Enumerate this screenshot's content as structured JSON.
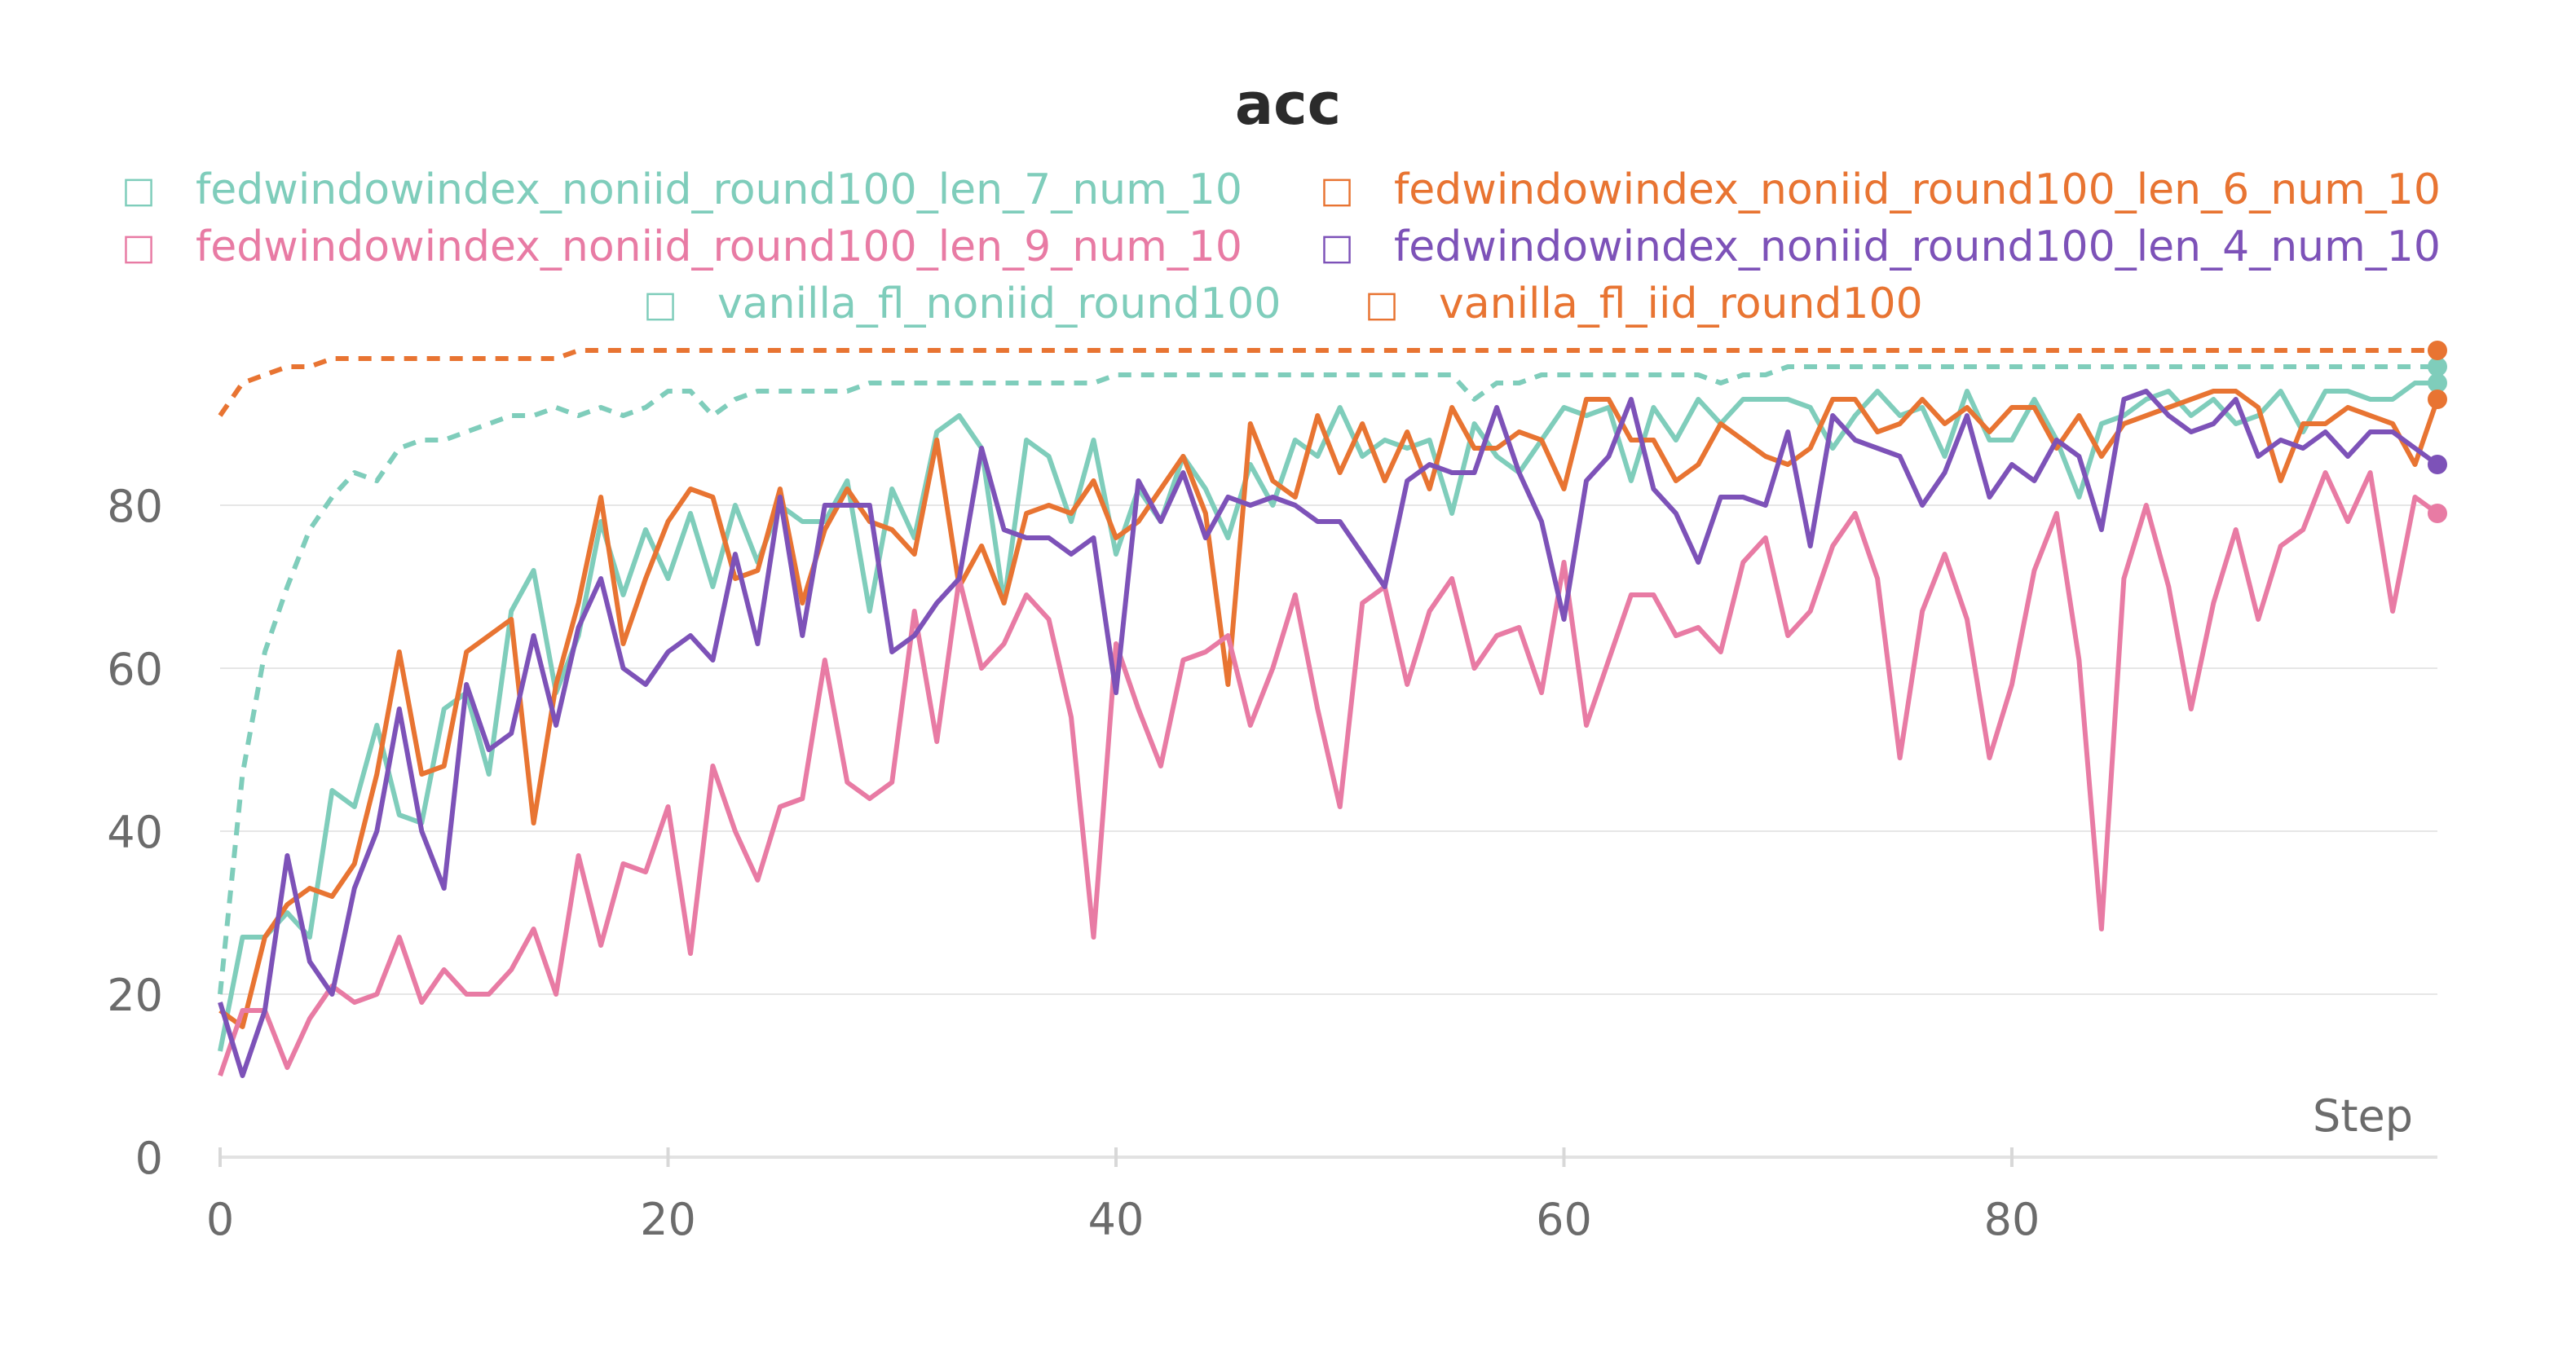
{
  "chart_data": {
    "type": "line",
    "title": "acc",
    "xlabel": "Step",
    "ylabel": "",
    "xlim": [
      0,
      99
    ],
    "ylim": [
      0,
      100
    ],
    "x_ticks": [
      0,
      20,
      40,
      60,
      80
    ],
    "y_ticks": [
      0,
      20,
      40,
      60,
      80
    ],
    "grid": "horizontal",
    "legend_position": "top",
    "legend_icon": "□",
    "series": [
      {
        "name": "fedwindowindex_noniid_round100_len_7_num_10",
        "color": "#7fcdbb",
        "dashed": false,
        "x": [
          0,
          1,
          2,
          3,
          4,
          5,
          6,
          7,
          8,
          9,
          10,
          11,
          12,
          13,
          14,
          15,
          16,
          17,
          18,
          19,
          20,
          21,
          22,
          23,
          24,
          25,
          26,
          27,
          28,
          29,
          30,
          31,
          32,
          33,
          34,
          35,
          36,
          37,
          38,
          39,
          40,
          41,
          42,
          43,
          44,
          45,
          46,
          47,
          48,
          49,
          50,
          51,
          52,
          53,
          54,
          55,
          56,
          57,
          58,
          59,
          60,
          61,
          62,
          63,
          64,
          65,
          66,
          67,
          68,
          69,
          70,
          71,
          72,
          73,
          74,
          75,
          76,
          77,
          78,
          79,
          80,
          81,
          82,
          83,
          84,
          85,
          86,
          87,
          88,
          89,
          90,
          91,
          92,
          93,
          94,
          95,
          96,
          97,
          98,
          99
        ],
        "values": [
          13,
          27,
          27,
          30,
          27,
          45,
          43,
          53,
          42,
          41,
          55,
          57,
          47,
          67,
          72,
          57,
          64,
          78,
          69,
          77,
          71,
          79,
          70,
          80,
          73,
          80,
          78,
          78,
          83,
          67,
          82,
          76,
          89,
          91,
          87,
          68,
          88,
          86,
          78,
          88,
          74,
          82,
          78,
          86,
          82,
          76,
          85,
          80,
          88,
          86,
          92,
          86,
          88,
          87,
          88,
          79,
          90,
          86,
          84,
          88,
          92,
          91,
          92,
          83,
          92,
          88,
          93,
          90,
          93,
          93,
          93,
          92,
          87,
          91,
          94,
          91,
          92,
          86,
          94,
          88,
          88,
          93,
          88,
          81,
          90,
          91,
          93,
          94,
          91,
          93,
          90,
          91,
          94,
          89,
          94,
          94,
          93,
          93,
          95,
          95
        ]
      },
      {
        "name": "fedwindowindex_noniid_round100_len_6_num_10",
        "color": "#e87432",
        "dashed": false,
        "x": [
          0,
          1,
          2,
          3,
          4,
          5,
          6,
          7,
          8,
          9,
          10,
          11,
          12,
          13,
          14,
          15,
          16,
          17,
          18,
          19,
          20,
          21,
          22,
          23,
          24,
          25,
          26,
          27,
          28,
          29,
          30,
          31,
          32,
          33,
          34,
          35,
          36,
          37,
          38,
          39,
          40,
          41,
          42,
          43,
          44,
          45,
          46,
          47,
          48,
          49,
          50,
          51,
          52,
          53,
          54,
          55,
          56,
          57,
          58,
          59,
          60,
          61,
          62,
          63,
          64,
          65,
          66,
          67,
          68,
          69,
          70,
          71,
          72,
          73,
          74,
          75,
          76,
          77,
          78,
          79,
          80,
          81,
          82,
          83,
          84,
          85,
          86,
          87,
          88,
          89,
          90,
          91,
          92,
          93,
          94,
          95,
          96,
          97,
          98,
          99
        ],
        "values": [
          18,
          16,
          27,
          31,
          33,
          32,
          36,
          47,
          62,
          47,
          48,
          62,
          64,
          66,
          41,
          58,
          68,
          81,
          63,
          71,
          78,
          82,
          81,
          71,
          72,
          82,
          68,
          77,
          82,
          78,
          77,
          74,
          88,
          70,
          75,
          68,
          79,
          80,
          79,
          83,
          76,
          78,
          82,
          86,
          79,
          58,
          90,
          83,
          81,
          91,
          84,
          90,
          83,
          89,
          82,
          92,
          87,
          87,
          89,
          88,
          82,
          93,
          93,
          88,
          88,
          83,
          85,
          90,
          88,
          86,
          85,
          87,
          93,
          93,
          89,
          90,
          93,
          90,
          92,
          89,
          92,
          92,
          87,
          91,
          86,
          90,
          91,
          92,
          93,
          94,
          94,
          92,
          83,
          90,
          90,
          92,
          91,
          90,
          85,
          93
        ]
      },
      {
        "name": "fedwindowindex_noniid_round100_len_9_num_10",
        "color": "#e87ba4",
        "dashed": false,
        "x": [
          0,
          1,
          2,
          3,
          4,
          5,
          6,
          7,
          8,
          9,
          10,
          11,
          12,
          13,
          14,
          15,
          16,
          17,
          18,
          19,
          20,
          21,
          22,
          23,
          24,
          25,
          26,
          27,
          28,
          29,
          30,
          31,
          32,
          33,
          34,
          35,
          36,
          37,
          38,
          39,
          40,
          41,
          42,
          43,
          44,
          45,
          46,
          47,
          48,
          49,
          50,
          51,
          52,
          53,
          54,
          55,
          56,
          57,
          58,
          59,
          60,
          61,
          62,
          63,
          64,
          65,
          66,
          67,
          68,
          69,
          70,
          71,
          72,
          73,
          74,
          75,
          76,
          77,
          78,
          79,
          80,
          81,
          82,
          83,
          84,
          85,
          86,
          87,
          88,
          89,
          90,
          91,
          92,
          93,
          94,
          95,
          96,
          97,
          98,
          99
        ],
        "values": [
          10,
          18,
          18,
          11,
          17,
          21,
          19,
          20,
          27,
          19,
          23,
          20,
          20,
          23,
          28,
          20,
          37,
          26,
          36,
          35,
          43,
          25,
          48,
          40,
          34,
          43,
          44,
          61,
          46,
          44,
          46,
          67,
          51,
          71,
          60,
          63,
          69,
          66,
          54,
          27,
          63,
          55,
          48,
          61,
          62,
          64,
          53,
          60,
          69,
          55,
          43,
          68,
          70,
          58,
          67,
          71,
          60,
          64,
          65,
          57,
          73,
          53,
          61,
          69,
          69,
          64,
          65,
          62,
          73,
          76,
          64,
          67,
          75,
          79,
          71,
          49,
          67,
          74,
          66,
          49,
          58,
          72,
          79,
          61,
          28,
          71,
          80,
          70,
          55,
          68,
          77,
          66,
          75,
          77,
          84,
          78,
          84,
          67,
          81,
          79
        ]
      },
      {
        "name": "fedwindowindex_noniid_round100_len_4_num_10",
        "color": "#7d52b8",
        "dashed": false,
        "x": [
          0,
          1,
          2,
          3,
          4,
          5,
          6,
          7,
          8,
          9,
          10,
          11,
          12,
          13,
          14,
          15,
          16,
          17,
          18,
          19,
          20,
          21,
          22,
          23,
          24,
          25,
          26,
          27,
          28,
          29,
          30,
          31,
          32,
          33,
          34,
          35,
          36,
          37,
          38,
          39,
          40,
          41,
          42,
          43,
          44,
          45,
          46,
          47,
          48,
          49,
          50,
          51,
          52,
          53,
          54,
          55,
          56,
          57,
          58,
          59,
          60,
          61,
          62,
          63,
          64,
          65,
          66,
          67,
          68,
          69,
          70,
          71,
          72,
          73,
          74,
          75,
          76,
          77,
          78,
          79,
          80,
          81,
          82,
          83,
          84,
          85,
          86,
          87,
          88,
          89,
          90,
          91,
          92,
          93,
          94,
          95,
          96,
          97,
          98,
          99
        ],
        "values": [
          19,
          10,
          18,
          37,
          24,
          20,
          33,
          40,
          55,
          40,
          33,
          58,
          50,
          52,
          64,
          53,
          65,
          71,
          60,
          58,
          62,
          64,
          61,
          74,
          63,
          81,
          64,
          80,
          80,
          80,
          62,
          64,
          68,
          71,
          87,
          77,
          76,
          76,
          74,
          76,
          57,
          83,
          78,
          84,
          76,
          81,
          80,
          81,
          80,
          78,
          78,
          74,
          70,
          83,
          85,
          84,
          84,
          92,
          84,
          78,
          66,
          83,
          86,
          93,
          82,
          79,
          73,
          81,
          81,
          80,
          89,
          75,
          91,
          88,
          87,
          86,
          80,
          84,
          91,
          81,
          85,
          83,
          88,
          86,
          77,
          93,
          94,
          91,
          89,
          90,
          93,
          86,
          88,
          87,
          89,
          86,
          89,
          89,
          87,
          85
        ]
      },
      {
        "name": "vanilla_fl_noniid_round100",
        "color": "#7fcdbb",
        "dashed": true,
        "x": [
          0,
          1,
          2,
          3,
          4,
          5,
          6,
          7,
          8,
          9,
          10,
          11,
          12,
          13,
          14,
          15,
          16,
          17,
          18,
          19,
          20,
          21,
          22,
          23,
          24,
          25,
          26,
          27,
          28,
          29,
          30,
          31,
          32,
          33,
          34,
          35,
          36,
          37,
          38,
          39,
          40,
          41,
          42,
          43,
          44,
          45,
          46,
          47,
          48,
          49,
          50,
          51,
          52,
          53,
          54,
          55,
          56,
          57,
          58,
          59,
          60,
          61,
          62,
          63,
          64,
          65,
          66,
          67,
          68,
          69,
          70,
          71,
          72,
          73,
          74,
          75,
          76,
          77,
          78,
          79,
          80,
          81,
          82,
          83,
          84,
          85,
          86,
          87,
          88,
          89,
          90,
          91,
          92,
          93,
          94,
          95,
          96,
          97,
          98,
          99
        ],
        "values": [
          20,
          47,
          62,
          70,
          77,
          81,
          84,
          83,
          87,
          88,
          88,
          89,
          90,
          91,
          91,
          92,
          91,
          92,
          91,
          92,
          94,
          94,
          91,
          93,
          94,
          94,
          94,
          94,
          94,
          95,
          95,
          95,
          95,
          95,
          95,
          95,
          95,
          95,
          95,
          95,
          96,
          96,
          96,
          96,
          96,
          96,
          96,
          96,
          96,
          96,
          96,
          96,
          96,
          96,
          96,
          96,
          93,
          95,
          95,
          96,
          96,
          96,
          96,
          96,
          96,
          96,
          96,
          95,
          96,
          96,
          97,
          97,
          97,
          97,
          97,
          97,
          97,
          97,
          97,
          97,
          97,
          97,
          97,
          97,
          97,
          97,
          97,
          97,
          97,
          97,
          97,
          97,
          97,
          97,
          97,
          97,
          97,
          97,
          97,
          97
        ]
      },
      {
        "name": "vanilla_fl_iid_round100",
        "color": "#e87432",
        "dashed": true,
        "x": [
          0,
          1,
          2,
          3,
          4,
          5,
          6,
          7,
          8,
          9,
          10,
          11,
          12,
          13,
          14,
          15,
          16,
          17,
          18,
          19,
          20,
          21,
          22,
          23,
          24,
          25,
          26,
          27,
          28,
          29,
          30,
          31,
          32,
          33,
          34,
          35,
          36,
          37,
          38,
          39,
          40,
          41,
          42,
          43,
          44,
          45,
          46,
          47,
          48,
          49,
          50,
          51,
          52,
          53,
          54,
          55,
          56,
          57,
          58,
          59,
          60,
          61,
          62,
          63,
          64,
          65,
          66,
          67,
          68,
          69,
          70,
          71,
          72,
          73,
          74,
          75,
          76,
          77,
          78,
          79,
          80,
          81,
          82,
          83,
          84,
          85,
          86,
          87,
          88,
          89,
          90,
          91,
          92,
          93,
          94,
          95,
          96,
          97,
          98,
          99
        ],
        "values": [
          91,
          95,
          96,
          97,
          97,
          98,
          98,
          98,
          98,
          98,
          98,
          98,
          98,
          98,
          98,
          98,
          99,
          99,
          99,
          99,
          99,
          99,
          99,
          99,
          99,
          99,
          99,
          99,
          99,
          99,
          99,
          99,
          99,
          99,
          99,
          99,
          99,
          99,
          99,
          99,
          99,
          99,
          99,
          99,
          99,
          99,
          99,
          99,
          99,
          99,
          99,
          99,
          99,
          99,
          99,
          99,
          99,
          99,
          99,
          99,
          99,
          99,
          99,
          99,
          99,
          99,
          99,
          99,
          99,
          99,
          99,
          99,
          99,
          99,
          99,
          99,
          99,
          99,
          99,
          99,
          99,
          99,
          99,
          99,
          99,
          99,
          99,
          99,
          99,
          99,
          99,
          99,
          99,
          99,
          99,
          99,
          99,
          99,
          99,
          99
        ]
      }
    ]
  }
}
